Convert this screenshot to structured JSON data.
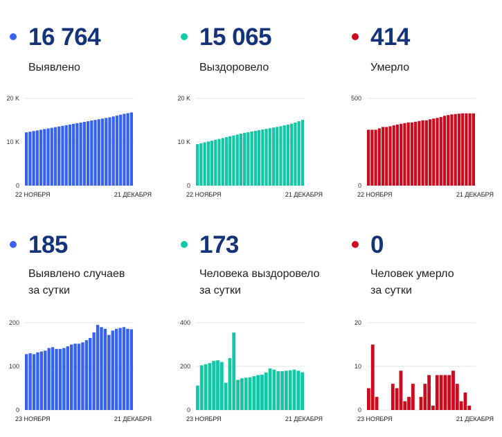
{
  "colors": {
    "blue": "#3562f0",
    "teal": "#12c7a4",
    "red": "#cc0a1e",
    "number": "#13337a",
    "grid": "#e3e3e3"
  },
  "panels": [
    {
      "number": "16 764",
      "label_lines": [
        "Выявлено"
      ],
      "color": "#3562f0",
      "chart_data": {
        "type": "bar",
        "title": "Выявлено",
        "ylim": [
          0,
          20000
        ],
        "y_ticks": [
          {
            "value": 0,
            "label": "0"
          },
          {
            "value": 10000,
            "label": "10 K"
          },
          {
            "value": 20000,
            "label": "20 K"
          }
        ],
        "x_start_label": "22 НОЯБРЯ",
        "x_end_label": "21 ДЕКАБРЯ",
        "values": [
          12200,
          12350,
          12500,
          12650,
          12800,
          12950,
          13100,
          13250,
          13400,
          13550,
          13700,
          13850,
          14000,
          14150,
          14300,
          14450,
          14600,
          14750,
          14900,
          15050,
          15200,
          15350,
          15500,
          15650,
          15850,
          16050,
          16250,
          16450,
          16600,
          16764
        ]
      }
    },
    {
      "number": "15 065",
      "label_lines": [
        "Выздоровело"
      ],
      "color": "#12c7a4",
      "chart_data": {
        "type": "bar",
        "title": "Выздоровело",
        "ylim": [
          0,
          20000
        ],
        "y_ticks": [
          {
            "value": 0,
            "label": "0"
          },
          {
            "value": 10000,
            "label": "10 K"
          },
          {
            "value": 20000,
            "label": "20 K"
          }
        ],
        "x_start_label": "22 НОЯБРЯ",
        "x_end_label": "21 ДЕКАБРЯ",
        "values": [
          9500,
          9700,
          9900,
          10100,
          10300,
          10500,
          10700,
          10900,
          11100,
          11300,
          11500,
          11700,
          11900,
          12100,
          12250,
          12400,
          12550,
          12700,
          12850,
          13000,
          13150,
          13300,
          13450,
          13600,
          13800,
          14000,
          14200,
          14450,
          14750,
          15065
        ]
      }
    },
    {
      "number": "414",
      "label_lines": [
        "Умерло"
      ],
      "color": "#cc0a1e",
      "chart_data": {
        "type": "bar",
        "title": "Умерло",
        "ylim": [
          0,
          500
        ],
        "y_ticks": [
          {
            "value": 0,
            "label": "0"
          },
          {
            "value": 500,
            "label": "500"
          }
        ],
        "x_start_label": "22 НОЯБРЯ",
        "x_end_label": "21 ДЕКАБРЯ",
        "values": [
          320,
          320,
          320,
          328,
          336,
          336,
          340,
          345,
          350,
          354,
          358,
          362,
          362,
          366,
          370,
          374,
          374,
          380,
          384,
          388,
          393,
          400,
          404,
          408,
          410,
          412,
          414,
          414,
          414,
          414
        ]
      }
    },
    {
      "number": "185",
      "label_lines": [
        "Выявлено случаев",
        "за сутки"
      ],
      "color": "#3562f0",
      "chart_data": {
        "type": "bar",
        "title": "Выявлено случаев за сутки",
        "ylim": [
          0,
          200
        ],
        "y_ticks": [
          {
            "value": 0,
            "label": "0"
          },
          {
            "value": 100,
            "label": "100"
          },
          {
            "value": 200,
            "label": "200"
          }
        ],
        "x_start_label": "23 НОЯБРЯ",
        "x_end_label": "21 ДЕКАБРЯ",
        "values": [
          128,
          130,
          128,
          132,
          134,
          136,
          142,
          144,
          140,
          140,
          142,
          146,
          150,
          152,
          152,
          155,
          160,
          165,
          178,
          195,
          190,
          186,
          172,
          182,
          186,
          188,
          190,
          186,
          185
        ]
      }
    },
    {
      "number": "173",
      "label_lines": [
        "Человека выздоровело",
        "за сутки"
      ],
      "color": "#12c7a4",
      "chart_data": {
        "type": "bar",
        "title": "Человека выздоровело за сутки",
        "ylim": [
          0,
          400
        ],
        "y_ticks": [
          {
            "value": 0,
            "label": "0"
          },
          {
            "value": 200,
            "label": "200"
          },
          {
            "value": 400,
            "label": "400"
          }
        ],
        "x_start_label": "23 НОЯБРЯ",
        "x_end_label": "21 ДЕКАБРЯ",
        "values": [
          112,
          205,
          210,
          215,
          225,
          228,
          220,
          125,
          238,
          355,
          138,
          145,
          148,
          150,
          155,
          160,
          162,
          172,
          190,
          185,
          178,
          178,
          180,
          182,
          185,
          180,
          173
        ]
      }
    },
    {
      "number": "0",
      "label_lines": [
        "Человек умерло",
        "за сутки"
      ],
      "color": "#cc0a1e",
      "chart_data": {
        "type": "bar",
        "title": "Человек умерло за сутки",
        "ylim": [
          0,
          20
        ],
        "y_ticks": [
          {
            "value": 0,
            "label": "0"
          },
          {
            "value": 10,
            "label": "10"
          },
          {
            "value": 20,
            "label": "20"
          }
        ],
        "x_start_label": "23 НОЯБРЯ",
        "x_end_label": "21 ДЕКАБРЯ",
        "values": [
          5,
          15,
          3,
          0,
          0,
          0,
          6,
          5,
          9,
          2,
          3,
          6,
          0,
          3,
          6,
          8,
          1,
          8,
          8,
          8,
          8,
          9,
          6,
          2,
          4,
          1,
          0
        ]
      }
    }
  ]
}
